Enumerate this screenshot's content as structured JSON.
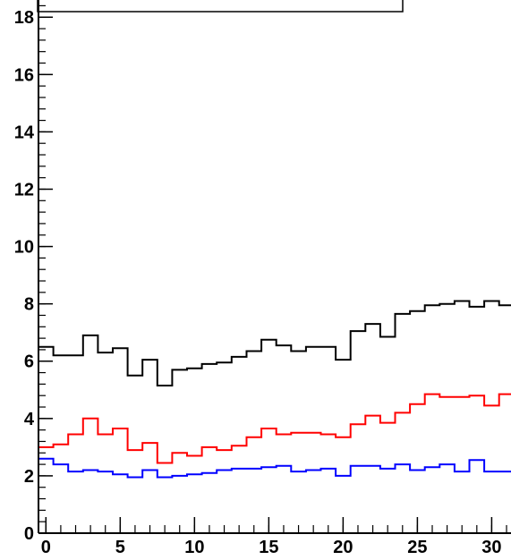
{
  "chart_data": {
    "type": "line",
    "style": "step-histogram",
    "title": "",
    "xlabel": "",
    "ylabel": "",
    "xlim": [
      -0.5,
      31.3
    ],
    "ylim": [
      0,
      18.6
    ],
    "x_ticks": [
      0,
      5,
      10,
      15,
      20,
      25,
      30
    ],
    "y_ticks": [
      0,
      2,
      4,
      6,
      8,
      10,
      12,
      14,
      16,
      18
    ],
    "grid": false,
    "legend": "none",
    "bin_width": 1,
    "bin_centers": [
      0,
      1,
      2,
      3,
      4,
      5,
      6,
      7,
      8,
      9,
      10,
      11,
      12,
      13,
      14,
      15,
      16,
      17,
      18,
      19,
      20,
      21,
      22,
      23,
      24,
      25,
      26,
      27,
      28,
      29,
      30,
      31
    ],
    "series": [
      {
        "color": "#000000",
        "values": [
          6.5,
          6.2,
          6.2,
          6.9,
          6.3,
          6.45,
          5.5,
          6.05,
          5.15,
          5.7,
          5.75,
          5.9,
          5.95,
          6.15,
          6.35,
          6.75,
          6.55,
          6.35,
          6.5,
          6.5,
          6.05,
          7.05,
          7.3,
          6.85,
          7.65,
          7.75,
          7.95,
          8.0,
          8.1,
          7.9,
          8.1,
          7.95
        ]
      },
      {
        "color": "#ff0000",
        "values": [
          3.0,
          3.1,
          3.45,
          4.0,
          3.45,
          3.65,
          2.9,
          3.15,
          2.45,
          2.8,
          2.7,
          3.0,
          2.9,
          3.05,
          3.35,
          3.65,
          3.45,
          3.5,
          3.5,
          3.45,
          3.35,
          3.8,
          4.1,
          3.85,
          4.2,
          4.5,
          4.85,
          4.75,
          4.75,
          4.8,
          4.45,
          4.85
        ]
      },
      {
        "color": "#0000ff",
        "values": [
          2.6,
          2.4,
          2.15,
          2.2,
          2.15,
          2.05,
          1.95,
          2.2,
          1.95,
          2.0,
          2.05,
          2.1,
          2.2,
          2.25,
          2.25,
          2.3,
          2.35,
          2.15,
          2.2,
          2.25,
          2.0,
          2.35,
          2.35,
          2.25,
          2.4,
          2.2,
          2.3,
          2.4,
          2.15,
          2.55,
          2.15,
          2.15
        ]
      }
    ],
    "colors": {
      "axis": "#000000",
      "background": "#ffffff"
    }
  }
}
